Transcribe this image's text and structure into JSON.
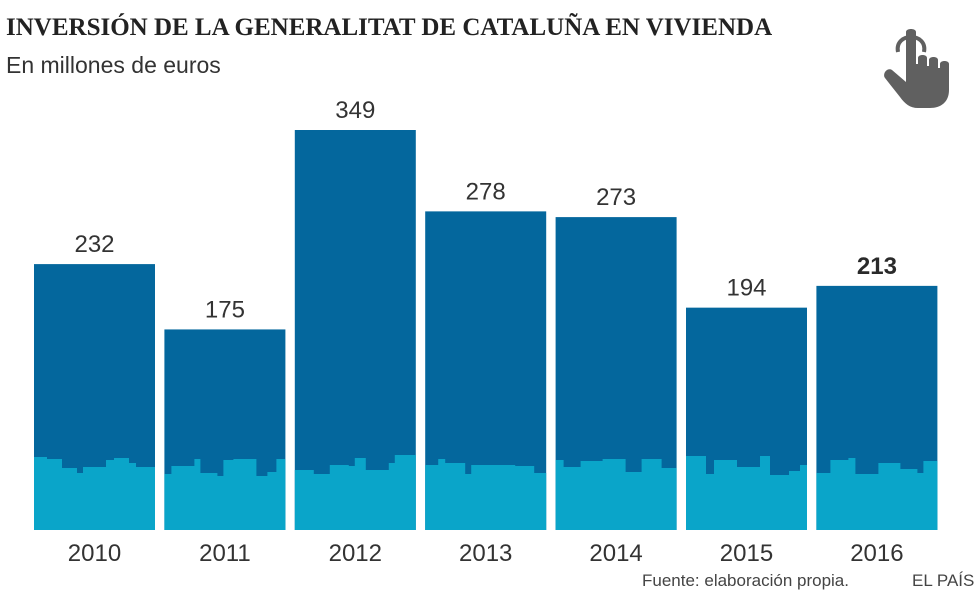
{
  "header": {
    "title": "INVERSIÓN DE LA GENERALITAT DE CATALUÑA EN VIVIENDA",
    "subtitle": "En millones de euros"
  },
  "icon": {
    "name": "pointing-hand-icon",
    "color": "#606060"
  },
  "chart_data": {
    "type": "bar",
    "title": "INVERSIÓN DE LA GENERALITAT DE CATALUÑA EN VIVIENDA",
    "subtitle": "En millones de euros",
    "categories": [
      "2010",
      "2011",
      "2012",
      "2013",
      "2014",
      "2015",
      "2016"
    ],
    "values": [
      232,
      175,
      349,
      278,
      273,
      194,
      213
    ],
    "highlight": "2016",
    "xlabel": "",
    "ylabel": "",
    "ylim": [
      0,
      349
    ],
    "grid": false,
    "data_labels": true,
    "colors": {
      "bar": "#04679d",
      "skyline": "#0aa5c9"
    }
  },
  "footer": {
    "source": "Fuente: elaboración propia.",
    "brand": "EL PAÍS"
  }
}
